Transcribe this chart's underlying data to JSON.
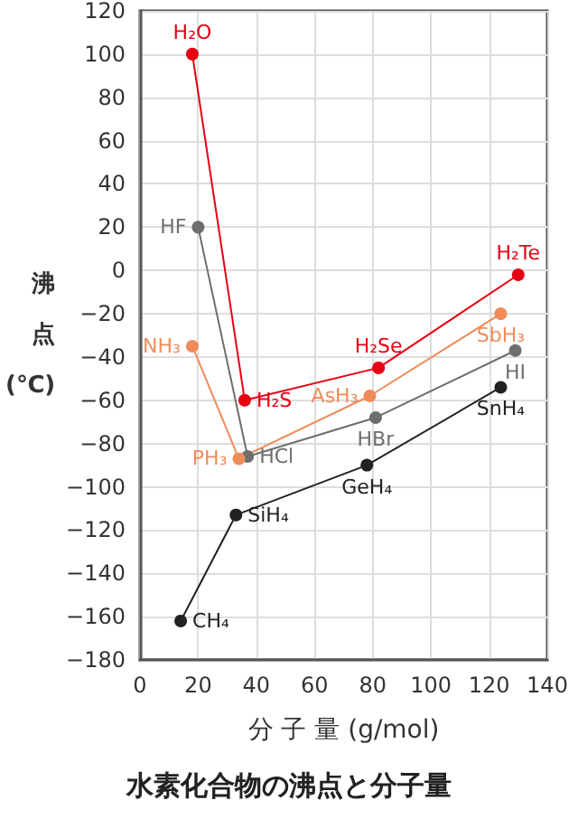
{
  "chart_data": {
    "type": "line",
    "title": "水素化合物の沸点と分子量",
    "xlabel": "分 子 量 (g/mol)",
    "ylabel": "沸点(℃)",
    "xlim": [
      0,
      140
    ],
    "xticks": [
      0,
      20,
      40,
      60,
      80,
      100,
      120,
      140
    ],
    "ylim": [
      -180,
      120
    ],
    "yticks": [
      -180,
      -160,
      -140,
      -120,
      -100,
      -80,
      -60,
      -40,
      -20,
      0,
      20,
      40,
      60,
      80,
      100,
      120
    ],
    "grid": true,
    "marker": "circle",
    "series": [
      {
        "color": "#e60012",
        "x": [
          18,
          36,
          82,
          130
        ],
        "values": [
          100,
          -60,
          -45,
          -2
        ],
        "value_labels": [
          "H₂O",
          "H₂S",
          "H₂Se",
          "H₂Te"
        ]
      },
      {
        "color": "#6e6e6e",
        "x": [
          20,
          37,
          81,
          129
        ],
        "values": [
          20,
          -86,
          -68,
          -37
        ],
        "value_labels": [
          "HF",
          "HCl",
          "HBr",
          "HI"
        ]
      },
      {
        "color": "#f08c5a",
        "x": [
          18,
          34,
          79,
          124
        ],
        "values": [
          -35,
          -87,
          -58,
          -20
        ],
        "value_labels": [
          "NH₃",
          "PH₃",
          "AsH₃",
          "SbH₃"
        ]
      },
      {
        "color": "#222222",
        "x": [
          14,
          33,
          78,
          124
        ],
        "values": [
          -162,
          -113,
          -90,
          -54
        ],
        "value_labels": [
          "CH₄",
          "SiH₄",
          "GeH₄",
          "SnH₄"
        ]
      }
    ]
  }
}
